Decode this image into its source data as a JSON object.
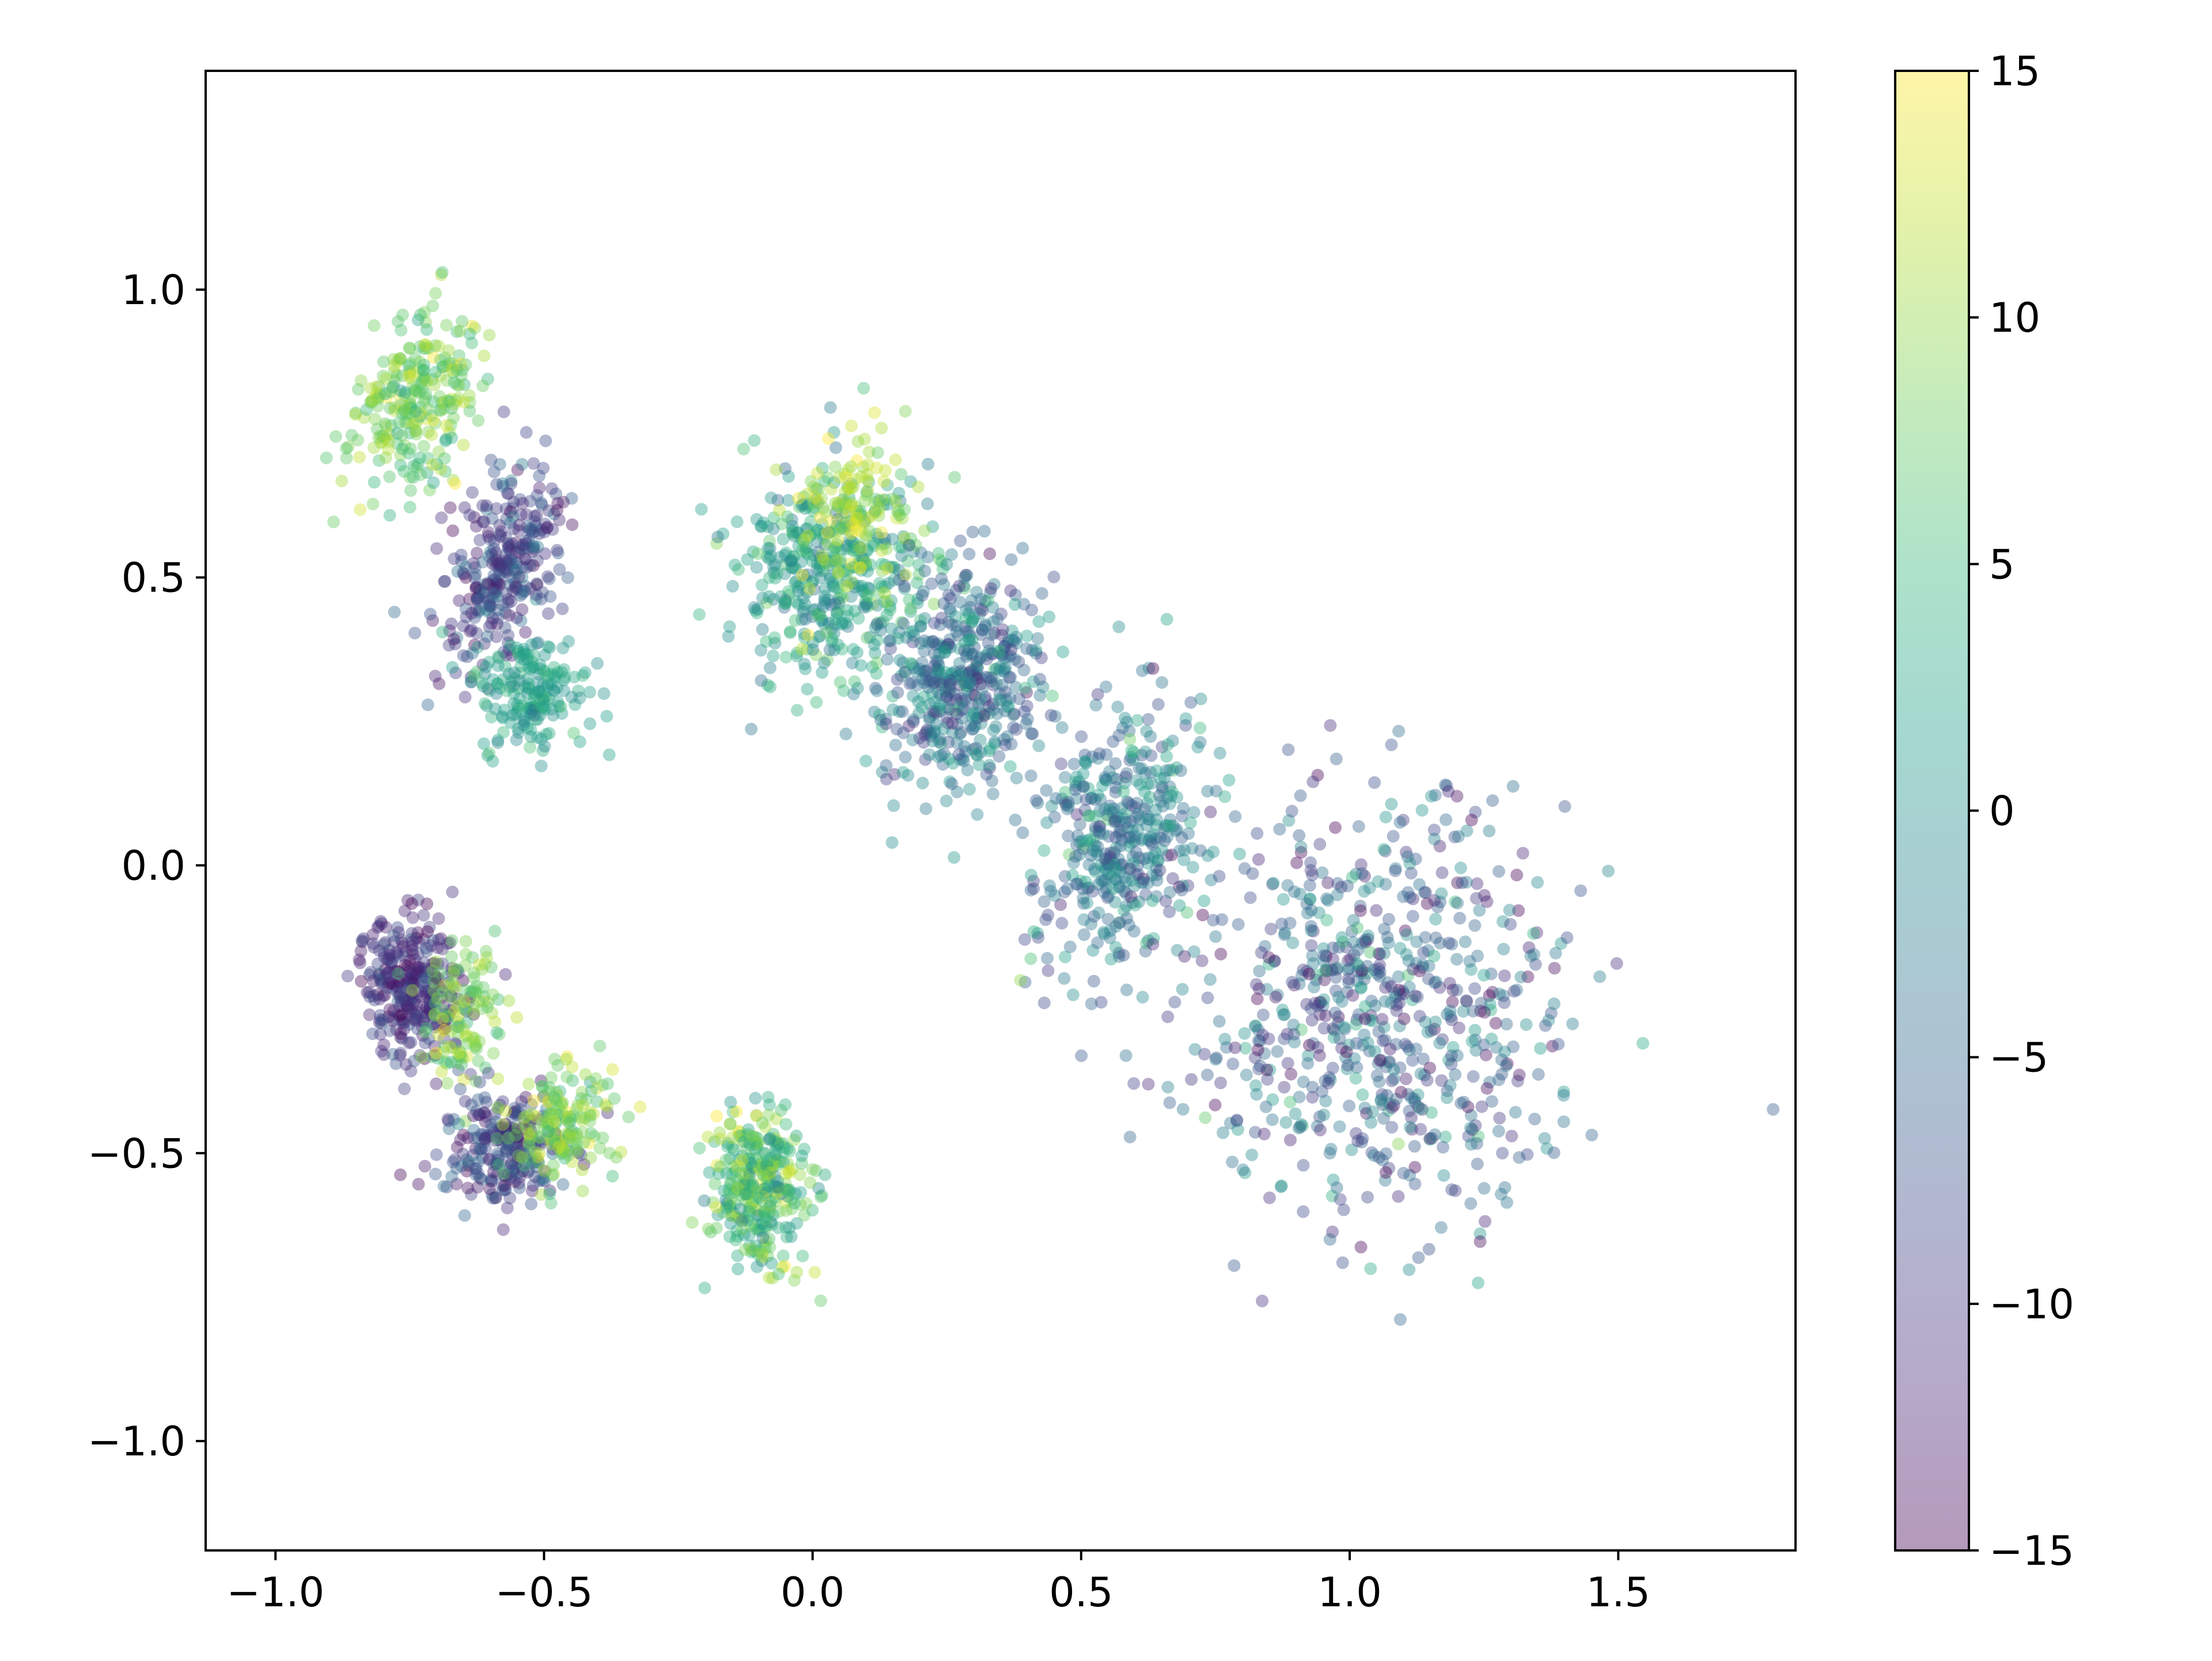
{
  "chart_data": {
    "type": "scatter",
    "title": "",
    "xlabel": "",
    "ylabel": "",
    "xlim": [
      -1.13,
      1.83
    ],
    "ylim": [
      -1.19,
      1.38
    ],
    "xticks": [
      {
        "value": -1.0,
        "label": "−1.0"
      },
      {
        "value": -0.5,
        "label": "−0.5"
      },
      {
        "value": 0.0,
        "label": "0.0"
      },
      {
        "value": 0.5,
        "label": "0.5"
      },
      {
        "value": 1.0,
        "label": "1.0"
      },
      {
        "value": 1.5,
        "label": "1.5"
      }
    ],
    "yticks": [
      {
        "value": -1.0,
        "label": "−1.0"
      },
      {
        "value": -0.5,
        "label": "−0.5"
      },
      {
        "value": 0.0,
        "label": "0.0"
      },
      {
        "value": 0.5,
        "label": "0.5"
      },
      {
        "value": 1.0,
        "label": "1.0"
      }
    ],
    "grid": false,
    "marker_alpha": 0.4,
    "colormap": {
      "name": "viridis",
      "range": [
        -15,
        15
      ],
      "stops": [
        "#440154",
        "#482878",
        "#3e4989",
        "#31688e",
        "#26828e",
        "#1f9e89",
        "#35b779",
        "#6ece58",
        "#b5de2b",
        "#fde725"
      ]
    },
    "colorbar": {
      "ticks": [
        {
          "value": -15,
          "label": "−15"
        },
        {
          "value": -10,
          "label": "−10"
        },
        {
          "value": -5,
          "label": "−5"
        },
        {
          "value": 0,
          "label": "0"
        },
        {
          "value": 5,
          "label": "5"
        },
        {
          "value": 10,
          "label": "10"
        },
        {
          "value": 15,
          "label": "15"
        }
      ]
    },
    "clusters": [
      {
        "cx": -0.74,
        "cy": 0.81,
        "sx": 0.05,
        "sy": 0.08,
        "rot": -0.5,
        "n": 260,
        "cmean": 8,
        "csd": 3
      },
      {
        "cx": -0.58,
        "cy": 0.52,
        "sx": 0.05,
        "sy": 0.09,
        "rot": -0.3,
        "n": 300,
        "cmean": -9,
        "csd": 3
      },
      {
        "cx": -0.52,
        "cy": 0.3,
        "sx": 0.05,
        "sy": 0.05,
        "rot": 0.0,
        "n": 180,
        "cmean": 2,
        "csd": 2
      },
      {
        "cx": -0.75,
        "cy": -0.21,
        "sx": 0.05,
        "sy": 0.06,
        "rot": 0.0,
        "n": 300,
        "cmean": -11,
        "csd": 2.5
      },
      {
        "cx": -0.65,
        "cy": -0.26,
        "sx": 0.04,
        "sy": 0.06,
        "rot": 0.0,
        "n": 120,
        "cmean": 9,
        "csd": 2.5
      },
      {
        "cx": -0.58,
        "cy": -0.49,
        "sx": 0.06,
        "sy": 0.05,
        "rot": 0.0,
        "n": 240,
        "cmean": -9,
        "csd": 3
      },
      {
        "cx": -0.47,
        "cy": -0.45,
        "sx": 0.05,
        "sy": 0.05,
        "rot": 0.0,
        "n": 170,
        "cmean": 9,
        "csd": 2.5
      },
      {
        "cx": -0.1,
        "cy": -0.56,
        "sx": 0.045,
        "sy": 0.065,
        "rot": 0.0,
        "n": 330,
        "cmean": 6,
        "csd": 4
      },
      {
        "cx": 0.03,
        "cy": 0.5,
        "sx": 0.09,
        "sy": 0.09,
        "rot": -0.4,
        "n": 420,
        "cmean": 2,
        "csd": 3.5
      },
      {
        "cx": 0.08,
        "cy": 0.62,
        "sx": 0.06,
        "sy": 0.07,
        "rot": -0.4,
        "n": 140,
        "cmean": 11,
        "csd": 2.5
      },
      {
        "cx": 0.28,
        "cy": 0.32,
        "sx": 0.07,
        "sy": 0.1,
        "rot": -0.2,
        "n": 460,
        "cmean": -4,
        "csd": 4
      },
      {
        "cx": 0.57,
        "cy": 0.04,
        "sx": 0.07,
        "sy": 0.12,
        "rot": -0.3,
        "n": 420,
        "cmean": -3,
        "csd": 4
      },
      {
        "cx": 1.06,
        "cy": -0.26,
        "sx": 0.17,
        "sy": 0.18,
        "rot": 0.0,
        "n": 700,
        "cmean": -6,
        "csd": 5
      }
    ]
  }
}
